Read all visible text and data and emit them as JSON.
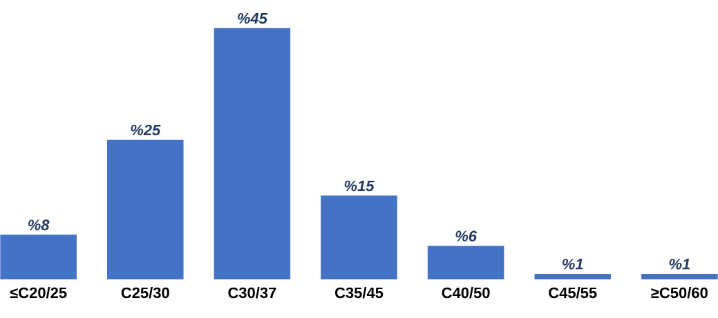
{
  "chart_data": {
    "type": "bar",
    "categories": [
      "≤C20/25",
      "C25/30",
      "C30/37",
      "C35/45",
      "C40/50",
      "C45/55",
      "≥C50/60"
    ],
    "values": [
      8,
      25,
      45,
      15,
      6,
      1,
      1
    ],
    "value_labels": [
      "%8",
      "%25",
      "%45",
      "%15",
      "%6",
      "%1",
      "%1"
    ],
    "color": "#4472c4"
  }
}
